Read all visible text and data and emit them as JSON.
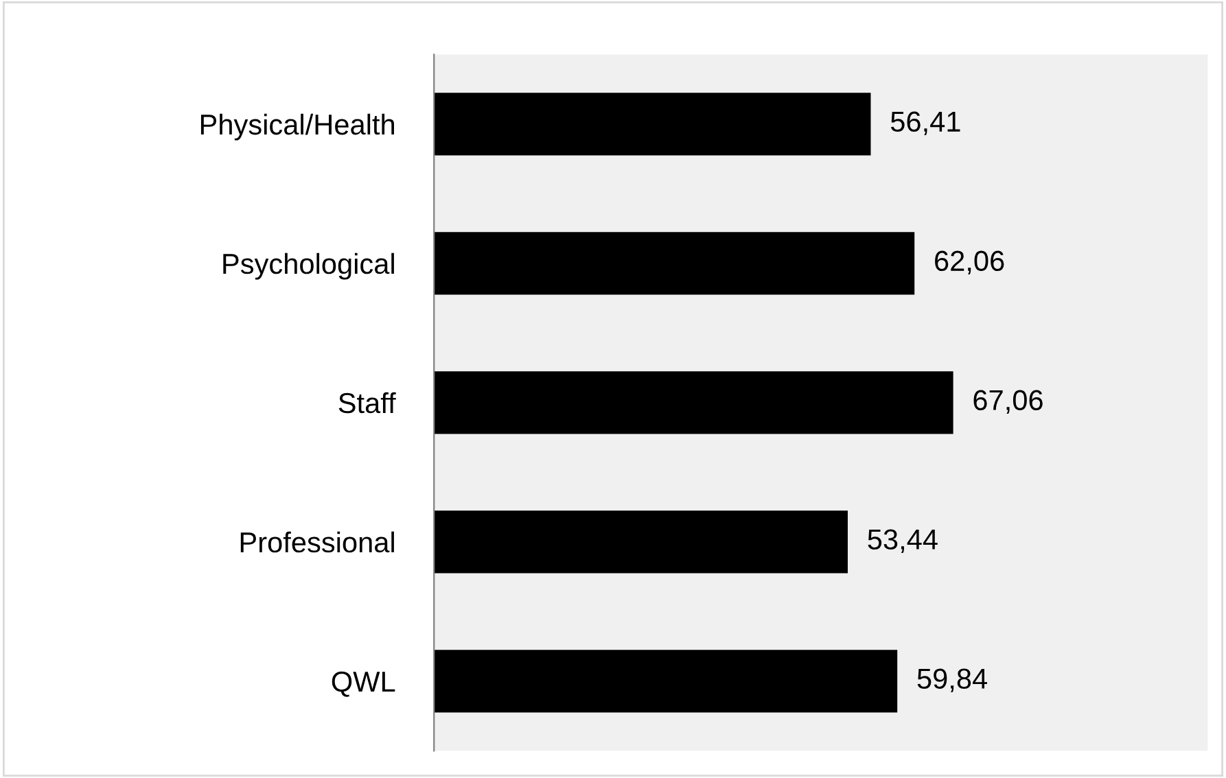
{
  "chart_data": {
    "type": "bar",
    "orientation": "horizontal",
    "categories": [
      "Physical/Health",
      "Psychological",
      "Staff",
      "Professional",
      "QWL"
    ],
    "values": [
      56.41,
      62.06,
      67.06,
      53.44,
      59.84
    ],
    "value_labels": [
      "56,41",
      "62,06",
      "67,06",
      "53,44",
      "59,84"
    ],
    "color": "#000000",
    "grid": false,
    "legend": false,
    "tick_labels": "y"
  }
}
